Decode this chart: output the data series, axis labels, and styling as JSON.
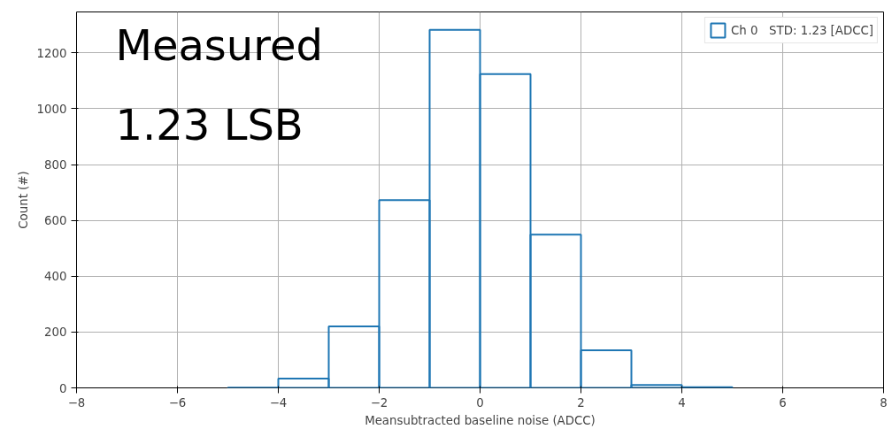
{
  "chart_data": {
    "type": "histogram",
    "xlabel": "Meansubtracted baseline noise (ADCC)",
    "ylabel": "Count (#)",
    "bins": [
      -5,
      -4,
      -3,
      -2,
      -1,
      0,
      1,
      2,
      3,
      4,
      5
    ],
    "series": [
      {
        "name": "Ch 0   STD: 1.23 [ADCC]",
        "color": "#1f77b4",
        "values": [
          1,
          33,
          220,
          673,
          1283,
          1124,
          549,
          135,
          10,
          2
        ]
      }
    ],
    "xlim": [
      -8,
      8
    ],
    "xticks": [
      -8,
      -6,
      -4,
      -2,
      0,
      2,
      4,
      6,
      8
    ],
    "ylim": [
      0,
      1347
    ],
    "yticks": [
      0,
      200,
      400,
      600,
      800,
      1000,
      1200
    ],
    "grid": true,
    "legend": "top right",
    "annotations": [
      "Measured",
      "1.23 LSB"
    ]
  }
}
